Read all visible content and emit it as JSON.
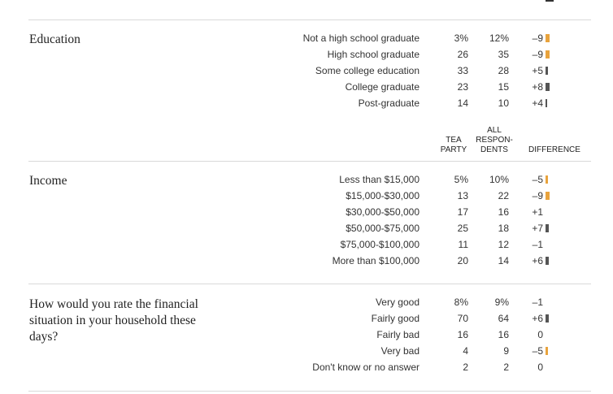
{
  "colors": {
    "negative_bar": "#e8a33d",
    "positive_bar": "#555555",
    "rule": "#d9d9d9"
  },
  "headers": {
    "tea_party": [
      "TEA",
      "PARTY"
    ],
    "all_respondents": [
      "ALL",
      "RESPON-",
      "DENTS"
    ],
    "difference": "DIFFERENCE"
  },
  "sections": [
    {
      "title": "Education",
      "rows": [
        {
          "label": "Not a high school graduate",
          "tea": "3%",
          "all": "12%",
          "diff": "–9",
          "diff_value": -9
        },
        {
          "label": "High school graduate",
          "tea": "26",
          "all": "35",
          "diff": "–9",
          "diff_value": -9
        },
        {
          "label": "Some college education",
          "tea": "33",
          "all": "28",
          "diff": "+5",
          "diff_value": 5
        },
        {
          "label": "College graduate",
          "tea": "23",
          "all": "15",
          "diff": "+8",
          "diff_value": 8
        },
        {
          "label": "Post-graduate",
          "tea": "14",
          "all": "10",
          "diff": "+4",
          "diff_value": 4
        }
      ]
    },
    {
      "title": "Income",
      "rows": [
        {
          "label": "Less than $15,000",
          "tea": "5%",
          "all": "10%",
          "diff": "–5",
          "diff_value": -5
        },
        {
          "label": "$15,000-$30,000",
          "tea": "13",
          "all": "22",
          "diff": "–9",
          "diff_value": -9
        },
        {
          "label": "$30,000-$50,000",
          "tea": "17",
          "all": "16",
          "diff": "+1",
          "diff_value": 1
        },
        {
          "label": "$50,000-$75,000",
          "tea": "25",
          "all": "18",
          "diff": "+7",
          "diff_value": 7
        },
        {
          "label": "$75,000-$100,000",
          "tea": "11",
          "all": "12",
          "diff": "–1",
          "diff_value": -1
        },
        {
          "label": "More than $100,000",
          "tea": "20",
          "all": "14",
          "diff": "+6",
          "diff_value": 6
        }
      ]
    },
    {
      "title": "How would you rate the financial situation in your household these days?",
      "rows": [
        {
          "label": "Very good",
          "tea": "8%",
          "all": "9%",
          "diff": "–1",
          "diff_value": -1
        },
        {
          "label": "Fairly good",
          "tea": "70",
          "all": "64",
          "diff": "+6",
          "diff_value": 6
        },
        {
          "label": "Fairly bad",
          "tea": "16",
          "all": "16",
          "diff": "0",
          "diff_value": 0
        },
        {
          "label": "Very bad",
          "tea": "4",
          "all": "9",
          "diff": "–5",
          "diff_value": -5
        },
        {
          "label": "Don't know or no answer",
          "tea": "2",
          "all": "2",
          "diff": "0",
          "diff_value": 0
        }
      ]
    }
  ]
}
